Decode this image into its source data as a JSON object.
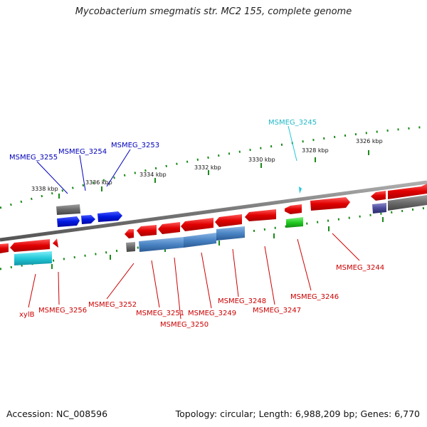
{
  "title": "Mycobacterium smegmatis str. MC2 155, complete genome",
  "footer": {
    "accession": "Accession: NC_008596",
    "info": "Topology: circular; Length: 6,988,209 bp; Genes: 6,770"
  },
  "ruler": {
    "ticks": [
      "3338 kbp",
      "3336 kbp",
      "3334 kbp",
      "3332 kbp",
      "3330 kbp",
      "3328 kbp",
      "3326 kbp"
    ]
  },
  "labels": {
    "top_blue": [
      "MSMEG_3255",
      "MSMEG_3254",
      "MSMEG_3253"
    ],
    "top_cyan": "MSMEG_3245",
    "bottom_red": [
      "xylB",
      "MSMEG_3256",
      "MSMEG_3252",
      "MSMEG_3251",
      "MSMEG_3250",
      "MSMEG_3249",
      "MSMEG_3248",
      "MSMEG_3247",
      "MSMEG_3246",
      "MSMEG_3244"
    ]
  },
  "colors": {
    "forward": "#e00000",
    "reverse_label": "#cc0000",
    "blue_gene": "#0018e0",
    "blue_label": "#0000bb",
    "cyan": "#22c8d8",
    "steel": "#4a84c4",
    "green": "#22cc22",
    "gray": "#6a6a6a",
    "purple": "#4a4a9a",
    "tick": "#1a8a1a"
  }
}
